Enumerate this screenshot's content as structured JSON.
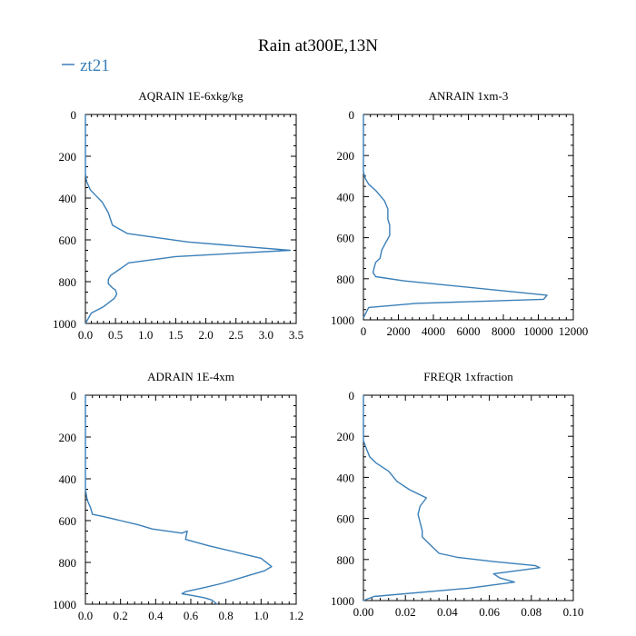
{
  "title": "Rain at300E,13N",
  "legend": {
    "label": "zt21",
    "color": "#3a7fb8",
    "placement": "top-left"
  },
  "chart_data": [
    {
      "type": "line",
      "title": "AQRAIN  1E-6xkg/kg",
      "xlim": [
        0,
        3.5
      ],
      "ylim": [
        0,
        1000
      ],
      "y_inverted": true,
      "xticks": [
        0,
        0.5,
        1.0,
        1.5,
        2.0,
        2.5,
        3.0,
        3.5
      ],
      "xtick_labels": [
        "0.0",
        "0.5",
        "1.0",
        "1.5",
        "2.0",
        "2.5",
        "3.0",
        "3.5"
      ],
      "yticks": [
        0,
        200,
        400,
        600,
        800,
        1000
      ],
      "ytick_labels": [
        "0",
        "200",
        "400",
        "600",
        "800",
        "1000"
      ],
      "series": [
        {
          "name": "zt21",
          "x": [
            0,
            0,
            0.02,
            0.08,
            0.18,
            0.28,
            0.38,
            0.45,
            0.7,
            1.7,
            3.4,
            1.5,
            0.72,
            0.62,
            0.52,
            0.42,
            0.38,
            0.38,
            0.45,
            0.5,
            0.52,
            0.48,
            0.3,
            0.1,
            0
          ],
          "y": [
            0,
            280,
            320,
            360,
            390,
            420,
            470,
            530,
            570,
            610,
            650,
            680,
            710,
            730,
            750,
            770,
            790,
            810,
            830,
            840,
            860,
            880,
            920,
            950,
            1000
          ]
        }
      ]
    },
    {
      "type": "line",
      "title": "ANRAIN  1xm-3",
      "xlim": [
        0,
        12000
      ],
      "ylim": [
        0,
        1000
      ],
      "y_inverted": true,
      "xticks": [
        0,
        2000,
        4000,
        6000,
        8000,
        10000,
        12000
      ],
      "xtick_labels": [
        "0",
        "2000",
        "4000",
        "6000",
        "8000",
        "10000",
        "12000"
      ],
      "yticks": [
        0,
        200,
        400,
        600,
        800,
        1000
      ],
      "ytick_labels": [
        "0",
        "200",
        "400",
        "600",
        "800",
        "1000"
      ],
      "series": [
        {
          "name": "zt21",
          "x": [
            0,
            0,
            100,
            300,
            700,
            1200,
            1400,
            1400,
            1500,
            1500,
            1300,
            1050,
            950,
            700,
            600,
            550,
            700,
            2300,
            10500,
            10300,
            3000,
            300,
            0
          ],
          "y": [
            0,
            280,
            310,
            340,
            370,
            420,
            460,
            510,
            540,
            590,
            620,
            660,
            700,
            720,
            750,
            770,
            790,
            810,
            880,
            900,
            920,
            940,
            990
          ]
        }
      ]
    },
    {
      "type": "line",
      "title": "ADRAIN  1E-4xm",
      "xlim": [
        0,
        1.2
      ],
      "ylim": [
        0,
        1000
      ],
      "y_inverted": true,
      "xticks": [
        0,
        0.2,
        0.4,
        0.6,
        0.8,
        1.0,
        1.2
      ],
      "xtick_labels": [
        "0.0",
        "0.2",
        "0.4",
        "0.6",
        "0.8",
        "1.0",
        "1.2"
      ],
      "yticks": [
        0,
        200,
        400,
        600,
        800,
        1000
      ],
      "ytick_labels": [
        "0",
        "200",
        "400",
        "600",
        "800",
        "1000"
      ],
      "series": [
        {
          "name": "zt21",
          "x": [
            0,
            0,
            0.01,
            0.03,
            0.04,
            0.1,
            0.2,
            0.3,
            0.38,
            0.55,
            0.58,
            0.57,
            0.7,
            0.8,
            0.9,
            1.0,
            1.06,
            1.02,
            0.9,
            0.78,
            0.68,
            0.57,
            0.55,
            0.62,
            0.68,
            0.72,
            0.75
          ],
          "y": [
            0,
            450,
            500,
            540,
            570,
            580,
            600,
            620,
            640,
            660,
            650,
            690,
            720,
            740,
            760,
            780,
            820,
            840,
            870,
            900,
            920,
            940,
            950,
            960,
            970,
            980,
            1000
          ]
        }
      ]
    },
    {
      "type": "line",
      "title": "FREQR  1xfraction",
      "xlim": [
        0,
        0.1
      ],
      "ylim": [
        0,
        1000
      ],
      "y_inverted": true,
      "xticks": [
        0,
        0.02,
        0.04,
        0.06,
        0.08,
        0.1
      ],
      "xtick_labels": [
        "0.00",
        "0.02",
        "0.04",
        "0.06",
        "0.08",
        "0.10"
      ],
      "yticks": [
        0,
        200,
        400,
        600,
        800,
        1000
      ],
      "ytick_labels": [
        "0",
        "200",
        "400",
        "600",
        "800",
        "1000"
      ],
      "series": [
        {
          "name": "zt21",
          "x": [
            0,
            0,
            0.001,
            0.003,
            0.006,
            0.012,
            0.016,
            0.022,
            0.03,
            0.027,
            0.026,
            0.027,
            0.028,
            0.028,
            0.032,
            0.036,
            0.045,
            0.062,
            0.082,
            0.084,
            0.062,
            0.065,
            0.072,
            0.05,
            0.005,
            0
          ],
          "y": [
            0,
            220,
            250,
            300,
            330,
            370,
            420,
            460,
            500,
            540,
            580,
            620,
            660,
            690,
            730,
            770,
            790,
            810,
            830,
            840,
            870,
            890,
            910,
            940,
            980,
            1000
          ]
        }
      ]
    }
  ]
}
